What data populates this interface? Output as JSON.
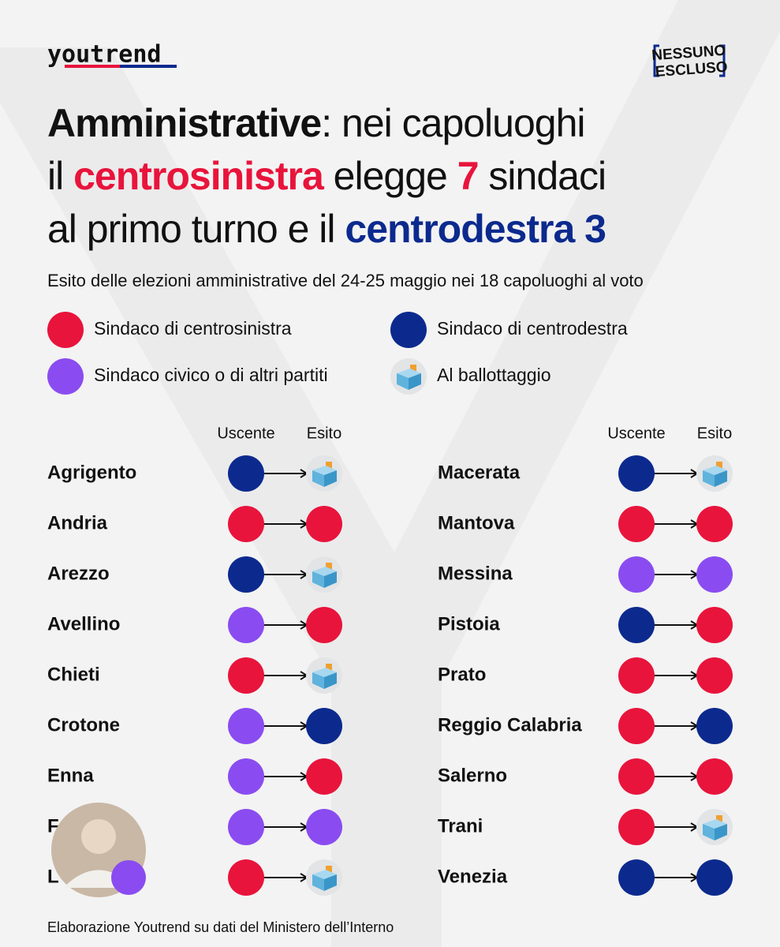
{
  "header": {
    "logo": "youtrend",
    "badge": [
      "NESSUNO",
      "ESCLUSO"
    ]
  },
  "title": [
    [
      {
        "text": "Amministrative",
        "style": "bold"
      },
      {
        "text": ": nei capoluoghi",
        "style": "plain"
      }
    ],
    [
      {
        "text": "il ",
        "style": "plain"
      },
      {
        "text": "centrosinistra",
        "style": "red"
      },
      {
        "text": " elegge ",
        "style": "plain"
      },
      {
        "text": "7",
        "style": "red"
      },
      {
        "text": " sindaci",
        "style": "plain"
      }
    ],
    [
      {
        "text": "al primo turno e il ",
        "style": "plain"
      },
      {
        "text": "centrodestra 3",
        "style": "blue"
      }
    ]
  ],
  "subtitle": "Esito delle elezioni amministrative del 24-25 maggio nei 18 capoluoghi al voto",
  "legend": [
    {
      "label": "Sindaco di centrosinistra",
      "color": "#e8143c"
    },
    {
      "label": "Sindaco di centrodestra",
      "color": "#0c2a8e"
    },
    {
      "label": "Sindaco civico o di altri partiti",
      "color": "#8a4cf0"
    },
    {
      "label": "Al ballottaggio",
      "color": "ballot"
    }
  ],
  "columns": [
    "Uscente",
    "Esito"
  ],
  "groups": [
    {
      "rows": [
        {
          "city": "Agrigento",
          "uscente": 1,
          "esito": 3
        },
        {
          "city": "Andria",
          "uscente": 0,
          "esito": 0
        },
        {
          "city": "Arezzo",
          "uscente": 1,
          "esito": 3
        },
        {
          "city": "Avellino",
          "uscente": 2,
          "esito": 0
        },
        {
          "city": "Chieti",
          "uscente": 0,
          "esito": 3
        },
        {
          "city": "Crotone",
          "uscente": 2,
          "esito": 1
        },
        {
          "city": "Enna",
          "uscente": 2,
          "esito": 0
        },
        {
          "city": "F",
          "uscente": 2,
          "esito": 2
        },
        {
          "city": "L",
          "uscente": 0,
          "esito": 3
        }
      ]
    },
    {
      "rows": [
        {
          "city": "Macerata",
          "uscente": 1,
          "esito": 3
        },
        {
          "city": "Mantova",
          "uscente": 0,
          "esito": 0
        },
        {
          "city": "Messina",
          "uscente": 2,
          "esito": 2
        },
        {
          "city": "Pistoia",
          "uscente": 1,
          "esito": 0
        },
        {
          "city": "Prato",
          "uscente": 0,
          "esito": 0
        },
        {
          "city": "Reggio Calabria",
          "uscente": 0,
          "esito": 1
        },
        {
          "city": "Salerno",
          "uscente": 0,
          "esito": 0
        },
        {
          "city": "Trani",
          "uscente": 0,
          "esito": 3
        },
        {
          "city": "Venezia",
          "uscente": 1,
          "esito": 1
        }
      ]
    }
  ],
  "footer": "Elaborazione Youtrend su dati del Ministero dell’Interno"
}
